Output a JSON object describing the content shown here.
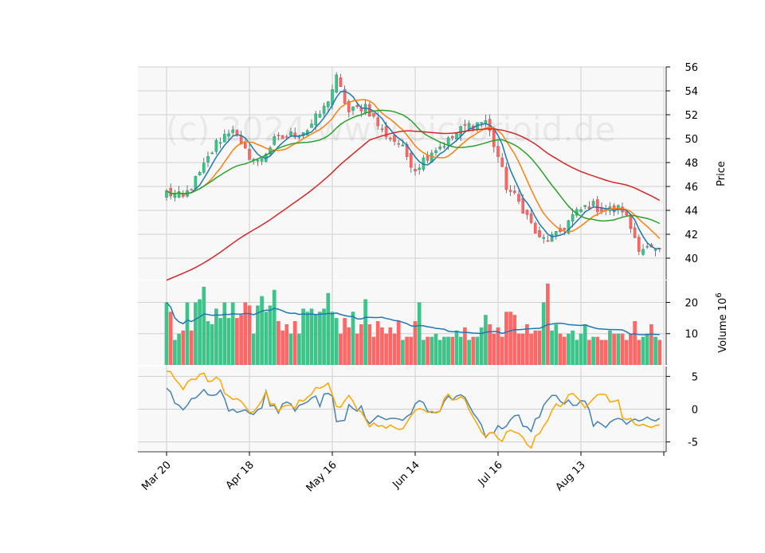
{
  "chart_data": {
    "type": "candlestick",
    "watermark": "(c) 2024 www.pictorioid.de",
    "x_ticks": [
      "Mar 20",
      "Apr 18",
      "May 16",
      "Jun 14",
      "Jul 16",
      "Aug 13"
    ],
    "x_tick_index": [
      0,
      20,
      40,
      60,
      80,
      100
    ],
    "n_bars": 120,
    "price_panel": {
      "ylabel": "Price",
      "ylim": [
        38.2,
        56
      ],
      "y_ticks": [
        40,
        42,
        44,
        46,
        48,
        50,
        52,
        54,
        56
      ],
      "anchors_close": [
        [
          0,
          45.5
        ],
        [
          4,
          45.0
        ],
        [
          8,
          47.0
        ],
        [
          12,
          49.6
        ],
        [
          16,
          51.0
        ],
        [
          18,
          49.2
        ],
        [
          22,
          48.0
        ],
        [
          26,
          49.8
        ],
        [
          30,
          50.3
        ],
        [
          34,
          50.8
        ],
        [
          38,
          52.5
        ],
        [
          41,
          55.0
        ],
        [
          44,
          52.2
        ],
        [
          48,
          52.8
        ],
        [
          52,
          50.6
        ],
        [
          56,
          49.6
        ],
        [
          60,
          47.5
        ],
        [
          64,
          49.0
        ],
        [
          68,
          49.8
        ],
        [
          72,
          51.0
        ],
        [
          77,
          51.5
        ],
        [
          80,
          48.5
        ],
        [
          82,
          46.0
        ],
        [
          86,
          44.2
        ],
        [
          90,
          41.5
        ],
        [
          94,
          41.8
        ],
        [
          98,
          43.5
        ],
        [
          102,
          44.5
        ],
        [
          106,
          44.0
        ],
        [
          110,
          44.1
        ],
        [
          114,
          41.0
        ],
        [
          116,
          40.8
        ],
        [
          119,
          40.3
        ]
      ],
      "ma_series": [
        {
          "period": 5,
          "color": "#1f77b4"
        },
        {
          "period": 10,
          "color": "#ff7f0e"
        },
        {
          "period": 20,
          "color": "#2ca02c"
        },
        {
          "period": 50,
          "color": "#d62728"
        }
      ]
    },
    "volume_panel": {
      "ylabel": "Volume  10^6",
      "ylim": [
        0,
        27
      ],
      "y_ticks": [
        10,
        20
      ],
      "volumes": [
        20,
        17,
        8,
        10,
        11,
        20,
        11,
        20,
        21,
        25,
        14,
        13,
        18,
        15,
        20,
        15,
        20,
        15,
        16,
        20,
        19,
        10,
        19,
        22,
        17,
        19,
        24,
        14,
        11,
        13,
        10,
        14,
        10,
        18,
        17,
        18,
        16,
        17,
        18,
        23,
        17,
        15,
        10,
        15,
        12,
        17,
        10,
        13,
        21,
        13,
        9,
        14,
        12,
        10,
        12,
        10,
        14,
        8,
        9,
        9,
        14,
        20,
        8,
        9,
        9,
        10,
        8,
        9,
        9,
        9,
        11,
        9,
        12,
        8,
        9,
        9,
        12,
        16,
        13,
        10,
        12,
        9,
        17,
        17,
        16,
        10,
        10,
        13,
        10,
        11,
        11,
        20,
        26,
        11,
        13,
        10,
        9,
        10,
        11,
        8,
        10,
        13,
        8,
        9,
        9,
        8,
        8,
        11,
        10,
        10,
        10,
        8,
        10,
        14,
        8,
        9,
        10,
        13,
        9,
        8
      ],
      "avg_color": "#1f77b4"
    },
    "osc_panel": {
      "ylim": [
        -6.5,
        6.5
      ],
      "y_ticks": [
        -5,
        0,
        5
      ],
      "series": [
        {
          "color": "#4682b4",
          "values": [
            3.2,
            2.6,
            0.9,
            0.6,
            -0.1,
            0.6,
            1.6,
            1.7,
            2.3,
            3.0,
            2.2,
            2.1,
            2.2,
            2.9,
            1.6,
            -0.3,
            0.0,
            -0.5,
            -0.3,
            -0.1,
            -0.6,
            -0.8,
            -0.1,
            0.2,
            2.8,
            0.5,
            0.6,
            -0.6,
            0.8,
            1.1,
            0.8,
            -0.3,
            0.6,
            0.8,
            1.1,
            1.7,
            2.0,
            0.4,
            2.3,
            2.4,
            2.0,
            -1.9,
            -1.8,
            -1.7,
            0.7,
            0.1,
            -0.3,
            0.5,
            -1.4,
            -2.2,
            -1.6,
            -1.0,
            -1.3,
            -1.6,
            -1.4,
            -1.4,
            -1.5,
            -1.7,
            -1.1,
            -0.7,
            0.8,
            1.3,
            1.0,
            -0.3,
            -0.5,
            -0.5,
            -0.3,
            1.2,
            2.0,
            1.4,
            2.0,
            2.2,
            1.8,
            0.6,
            -0.6,
            -1.4,
            -2.4,
            -4.3,
            -3.6,
            -3.6,
            -2.5,
            -3.0,
            -2.6,
            -1.6,
            -1.0,
            -0.9,
            -2.6,
            -2.7,
            -3.4,
            -1.5,
            -1.2,
            0.6,
            1.4,
            2.1,
            2.1,
            1.2,
            0.8,
            1.4,
            0.6,
            0.6,
            1.3,
            1.2,
            -0.1,
            -2.6,
            -1.9,
            -2.3,
            -2.8,
            -2.0,
            -1.6,
            -1.4,
            -1.6,
            -2.3,
            -1.8,
            -1.5,
            -1.8,
            -1.6,
            -1.2,
            -1.6,
            -1.8,
            -1.4
          ]
        },
        {
          "color": "#ffa500",
          "values": [
            5.8,
            5.7,
            4.6,
            3.9,
            3.0,
            4.1,
            4.6,
            4.5,
            5.3,
            5.5,
            4.2,
            4.3,
            4.9,
            4.4,
            2.4,
            2.0,
            1.5,
            1.6,
            1.2,
            0.4,
            -0.5,
            -0.4,
            0.4,
            1.3,
            2.7,
            0.8,
            0.8,
            -0.4,
            0.4,
            0.6,
            0.6,
            0.1,
            1.4,
            1.2,
            1.8,
            2.3,
            3.3,
            3.2,
            3.5,
            4.0,
            2.2,
            0.4,
            0.3,
            1.3,
            2.1,
            1.2,
            -0.1,
            -0.4,
            -1.5,
            -2.7,
            -2.1,
            -2.6,
            -2.5,
            -2.9,
            -2.4,
            -2.8,
            -3.1,
            -3.0,
            -2.0,
            -1.0,
            -0.2,
            0.1,
            -0.1,
            -0.5,
            -0.3,
            -0.6,
            -0.3,
            1.6,
            2.3,
            1.4,
            1.5,
            1.9,
            1.5,
            -0.1,
            -1.2,
            -2.3,
            -3.5,
            -4.2,
            -3.6,
            -3.6,
            -4.5,
            -4.9,
            -3.5,
            -3.2,
            -3.5,
            -3.7,
            -4.3,
            -5.4,
            -5.9,
            -4.1,
            -3.7,
            -2.6,
            -1.7,
            -0.2,
            0.8,
            0.4,
            1.0,
            2.2,
            2.4,
            1.8,
            1.1,
            0.2,
            0.9,
            1.6,
            2.2,
            2.3,
            2.2,
            1.1,
            1.2,
            1.4,
            -1.3,
            -1.6,
            -1.4,
            -2.3,
            -2.5,
            -2.3,
            -2.6,
            -2.8,
            -2.5,
            -2.4
          ]
        }
      ]
    },
    "colors": {
      "up": "#26a69a",
      "up_fill": "#3ec48a",
      "down": "#ef5350",
      "down_fill": "#ff6666",
      "panel_bg": "#f8f8f8",
      "grid": "#d0d0d0"
    }
  }
}
